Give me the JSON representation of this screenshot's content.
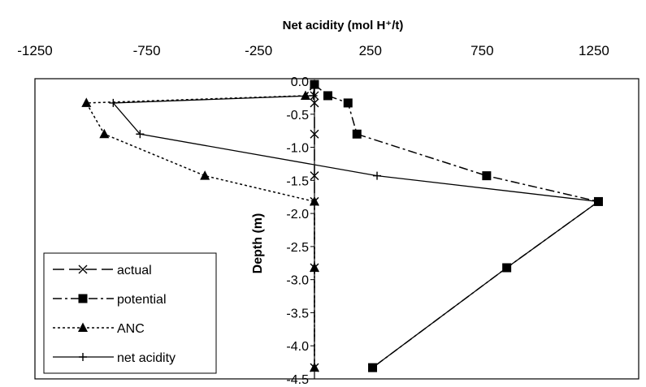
{
  "chart_data": {
    "type": "line",
    "title": "",
    "xlabel": "Net acidity (mol H⁺/t)",
    "ylabel": "Depth (m)",
    "x_ticks": [
      "-1250",
      "-750",
      "-250",
      "250",
      "750",
      "1250"
    ],
    "y_ticks": [
      "0.0",
      "-0.5",
      "-1.0",
      "-1.5",
      "-2.0",
      "-2.5",
      "-3.0",
      "-3.5",
      "-4.0",
      "-4.5"
    ],
    "xlim": [
      -1250,
      1450
    ],
    "ylim": [
      -4.5,
      0.0
    ],
    "legend_position": "bottom-left",
    "grid": false,
    "series": [
      {
        "name": "actual",
        "marker": "x",
        "line_style": "long-dash",
        "color": "#000000",
        "points": [
          [
            0,
            -0.05
          ],
          [
            0,
            -0.22
          ],
          [
            0,
            -0.33
          ],
          [
            0,
            -0.8
          ],
          [
            0,
            -1.43
          ],
          [
            0,
            -1.82
          ],
          [
            0,
            -2.82
          ],
          [
            0,
            -4.33
          ]
        ]
      },
      {
        "name": "potential",
        "marker": "square",
        "line_style": "dash-dot",
        "color": "#000000",
        "points": [
          [
            0,
            -0.05
          ],
          [
            60,
            -0.22
          ],
          [
            150,
            -0.33
          ],
          [
            190,
            -0.8
          ],
          [
            770,
            -1.43
          ],
          [
            1270,
            -1.82
          ],
          [
            860,
            -2.82
          ],
          [
            260,
            -4.33
          ]
        ]
      },
      {
        "name": "ANC",
        "marker": "triangle",
        "line_style": "dotted",
        "color": "#000000",
        "points": [
          [
            0,
            -0.05
          ],
          [
            -40,
            -0.22
          ],
          [
            -1020,
            -0.33
          ],
          [
            -940,
            -0.8
          ],
          [
            -490,
            -1.43
          ],
          [
            0,
            -1.82
          ],
          [
            0,
            -2.82
          ],
          [
            0,
            -4.33
          ]
        ]
      },
      {
        "name": "net acidity",
        "marker": "plus",
        "line_style": "solid",
        "color": "#000000",
        "points": [
          [
            0,
            -0.05
          ],
          [
            -5,
            -0.22
          ],
          [
            -900,
            -0.33
          ],
          [
            -780,
            -0.8
          ],
          [
            280,
            -1.43
          ],
          [
            1270,
            -1.82
          ],
          [
            860,
            -2.82
          ],
          [
            260,
            -4.33
          ]
        ]
      }
    ]
  }
}
